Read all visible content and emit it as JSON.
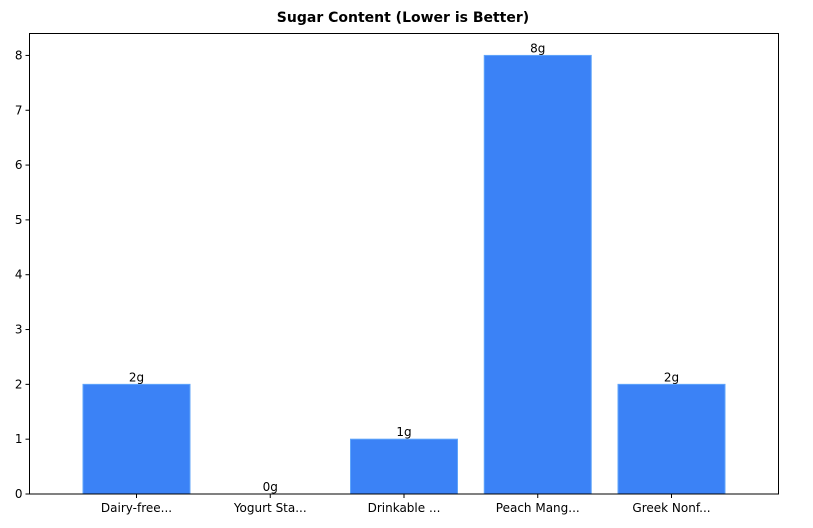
{
  "chart_data": {
    "type": "bar",
    "title": "Sugar Content (Lower is Better)",
    "xlabel": "",
    "ylabel": "",
    "categories": [
      "Dairy-free...",
      "Yogurt Sta...",
      "Drinkable ...",
      "Peach Mang...",
      "Greek Nonf..."
    ],
    "values": [
      2,
      0,
      1,
      8,
      2
    ],
    "value_labels": [
      "2g",
      "0g",
      "1g",
      "8g",
      "2g"
    ],
    "ylim": [
      0,
      8.4
    ],
    "yticks": [
      0,
      1,
      2,
      3,
      4,
      5,
      6,
      7,
      8
    ],
    "grid": false,
    "legend": null,
    "bar_color": "#3b82f6",
    "bar_edge_color": "#60a5fa"
  }
}
